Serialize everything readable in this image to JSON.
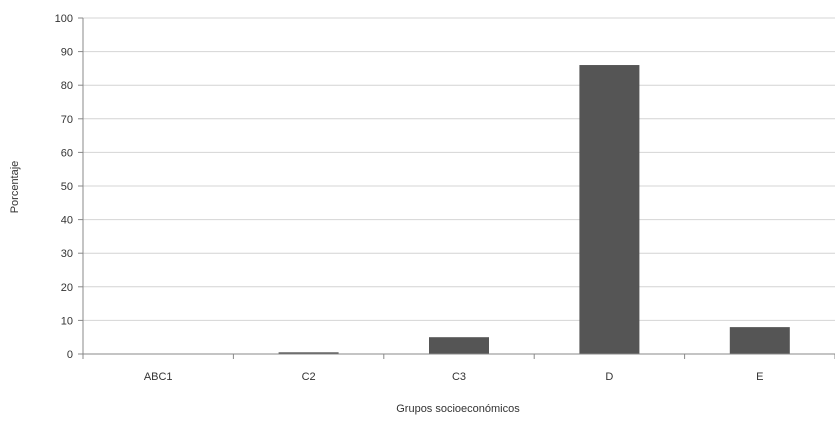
{
  "chart_data": {
    "type": "bar",
    "categories": [
      "ABC1",
      "C2",
      "C3",
      "D",
      "E"
    ],
    "values": [
      0,
      0.5,
      5,
      86,
      8
    ],
    "xlabel": "Grupos socioeconómicos",
    "ylabel": "Porcentaje",
    "ylim": [
      0,
      100
    ],
    "yticks": [
      0,
      10,
      20,
      30,
      40,
      50,
      60,
      70,
      80,
      90,
      100
    ],
    "grid": true,
    "legend": "none",
    "bar_color": "#555555",
    "grid_color": "#d4d4d4"
  }
}
